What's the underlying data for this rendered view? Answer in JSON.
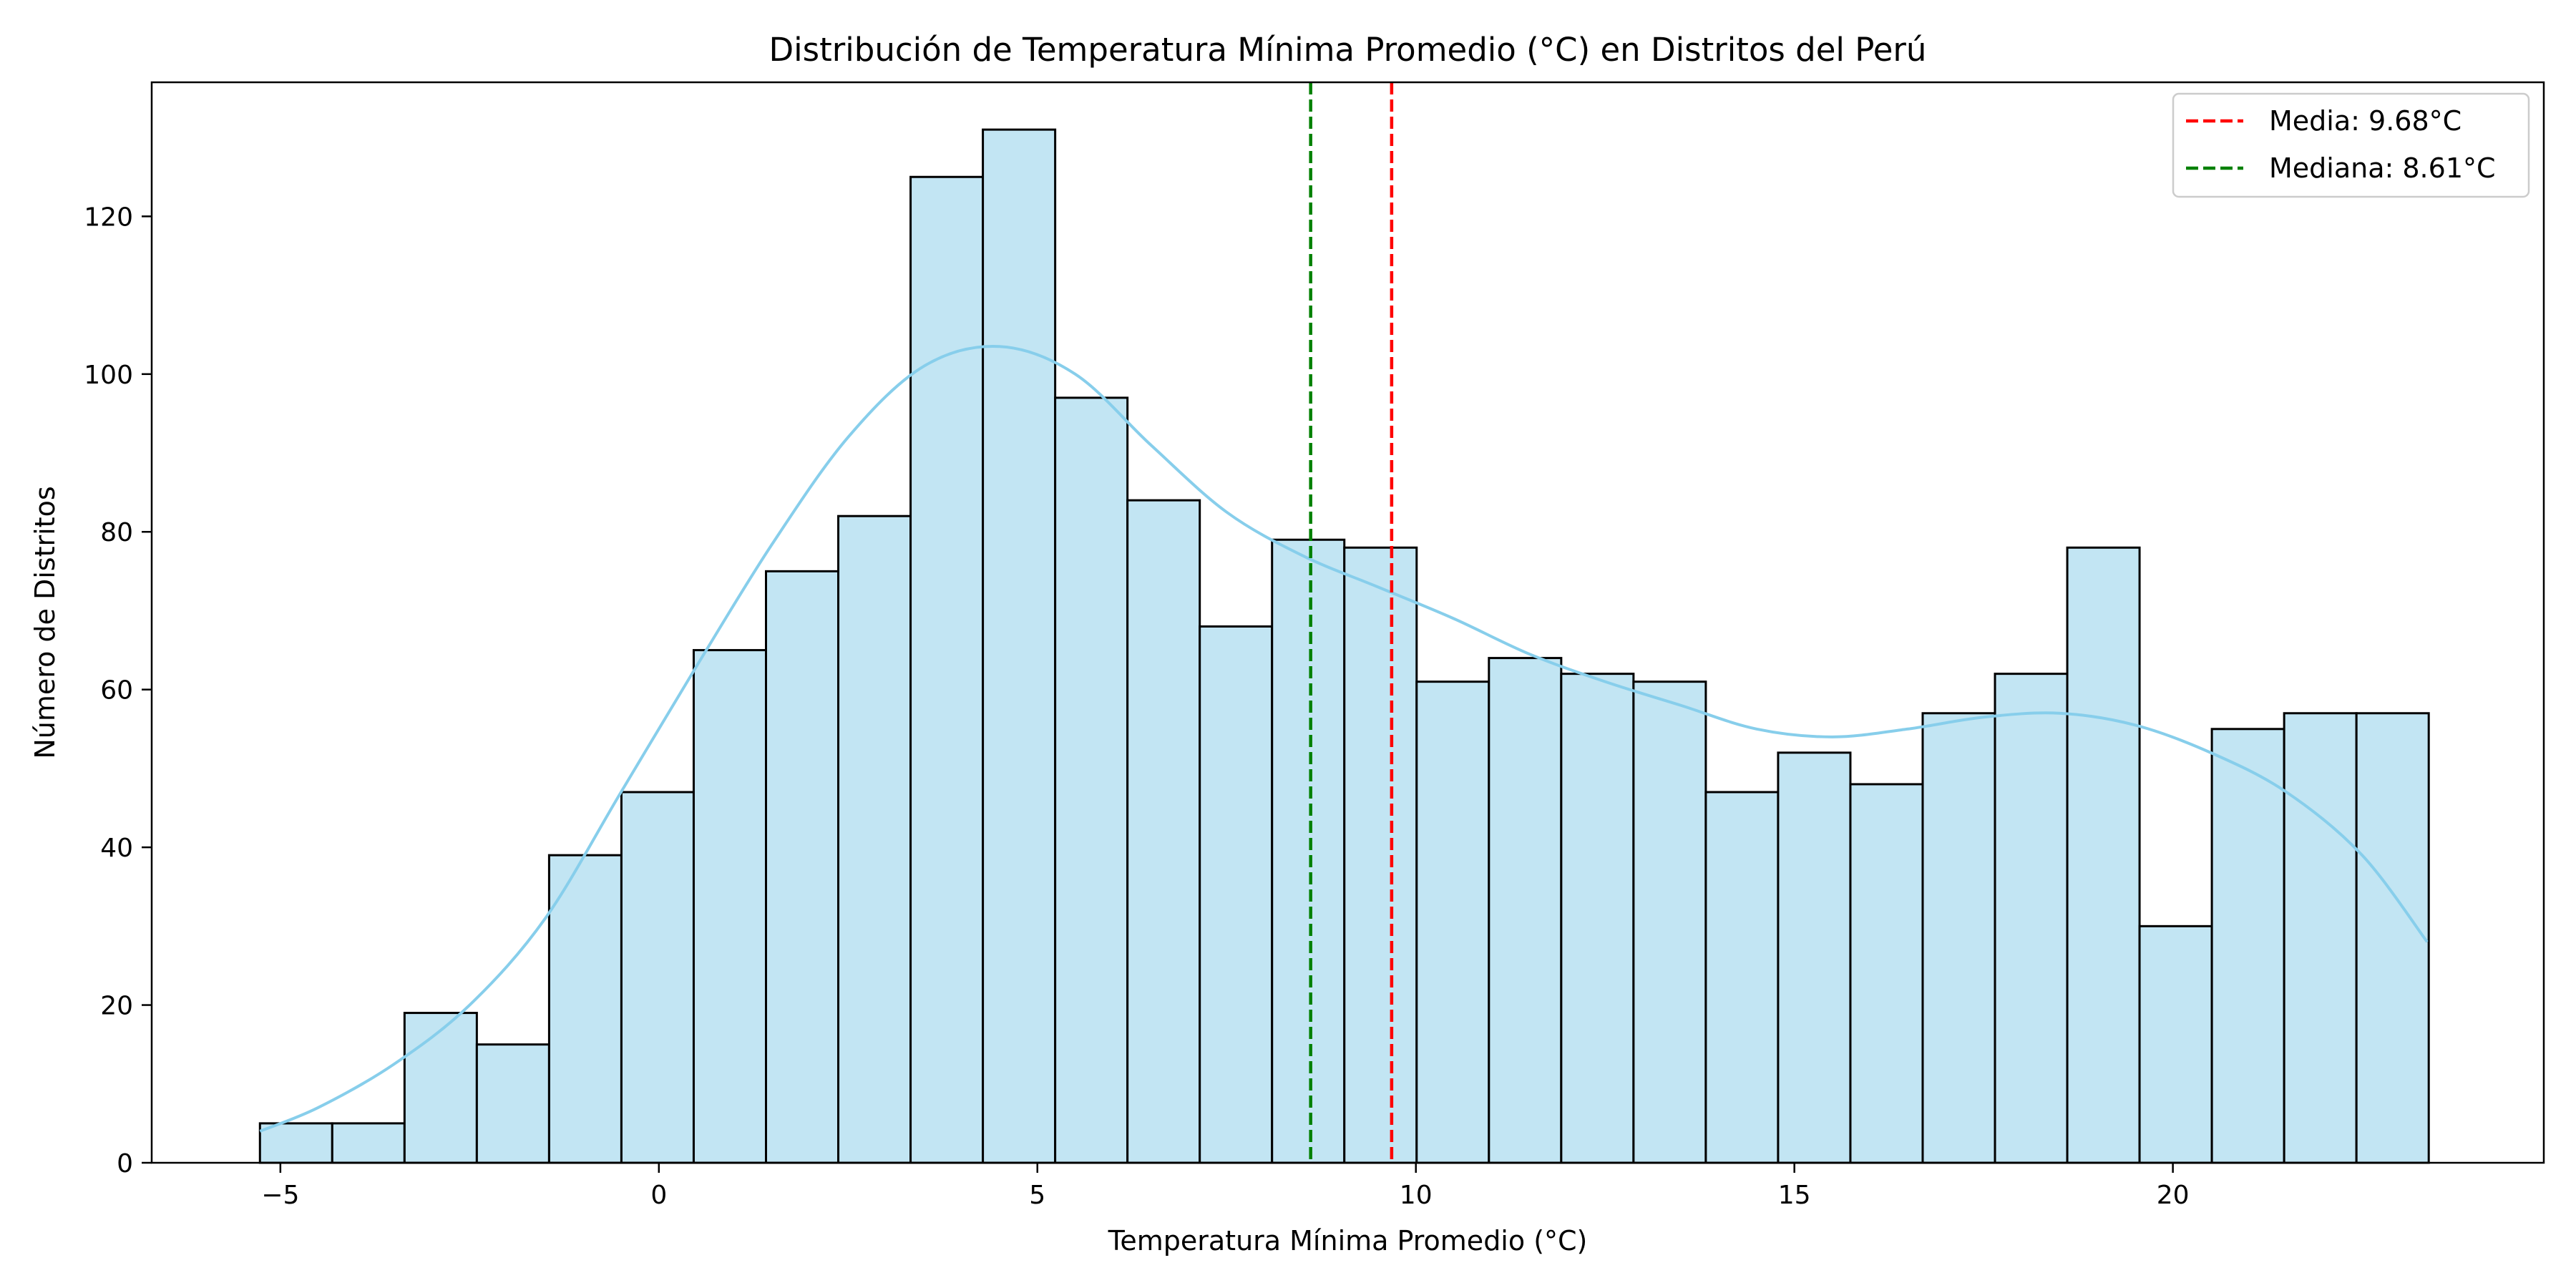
{
  "chart_data": {
    "type": "bar",
    "title": "Distribución de Temperatura Mínima Promedio (°C) en Distritos del Perú",
    "xlabel": "Temperatura Mínima Promedio (°C)",
    "ylabel": "Número de Distritos",
    "xlim": [
      -6.7,
      24.9
    ],
    "ylim": [
      0,
      137
    ],
    "xticks": [
      -5,
      0,
      5,
      10,
      15,
      20
    ],
    "xtick_labels": [
      "−5",
      "0",
      "5",
      "10",
      "15",
      "20"
    ],
    "yticks": [
      0,
      20,
      40,
      60,
      80,
      100,
      120
    ],
    "yticks_labels": [
      "0",
      "20",
      "40",
      "60",
      "80",
      "100",
      "120"
    ],
    "bin_start": -5.27,
    "bin_width": 0.955,
    "counts": [
      5,
      5,
      19,
      15,
      39,
      47,
      65,
      75,
      82,
      125,
      131,
      97,
      84,
      68,
      79,
      78,
      61,
      64,
      62,
      61,
      47,
      52,
      48,
      57,
      62,
      78,
      30,
      55,
      57,
      57
    ],
    "bar_fill": "#c2e5f3",
    "bar_edge": "#000000",
    "kde": {
      "color": "#87ceeb",
      "x": [
        -5.27,
        -4.5,
        -3.5,
        -2.5,
        -1.5,
        -0.5,
        0.5,
        1.5,
        2.5,
        3.5,
        4.5,
        5.5,
        6.5,
        7.5,
        8.5,
        9.5,
        10.5,
        11.5,
        12.5,
        13.5,
        14.5,
        15.5,
        16.5,
        17.5,
        18.5,
        19.5,
        20.5,
        21.5,
        22.5,
        23.36
      ],
      "y": [
        4,
        7,
        12.5,
        20,
        31,
        47,
        63,
        78.5,
        92,
        101,
        103.5,
        100,
        91,
        82.5,
        77,
        73,
        69,
        64.5,
        61,
        58,
        55,
        54,
        55,
        56.5,
        57,
        55.5,
        52,
        47,
        39,
        28
      ]
    },
    "reference_lines": [
      {
        "label": "Media: 9.68°C",
        "x": 9.68,
        "color": "#ff0000",
        "style": "dashed"
      },
      {
        "label": "Mediana: 8.61°C",
        "x": 8.61,
        "color": "#008000",
        "style": "dashed"
      }
    ],
    "legend_position": "top-right",
    "grid": false
  }
}
